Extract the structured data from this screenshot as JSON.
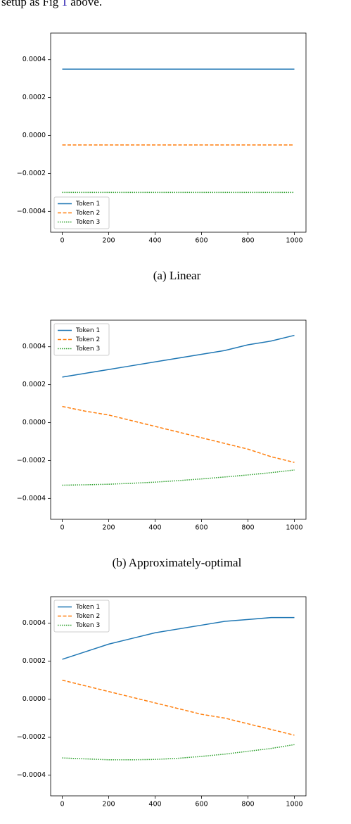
{
  "body_text": {
    "before": "setup as Fig",
    "ref": "1",
    "after": "above."
  },
  "chart_data": [
    {
      "type": "line",
      "caption": "(a) Linear",
      "legend": "lower left",
      "x": [
        0,
        100,
        200,
        300,
        400,
        500,
        600,
        700,
        800,
        900,
        1000
      ],
      "xlim": [
        -50,
        1050
      ],
      "xticks": [
        0,
        200,
        400,
        600,
        800,
        1000
      ],
      "ylim": [
        -0.00051,
        0.00054
      ],
      "yticks": [
        {
          "value": -0.0004,
          "label": "−0.0004"
        },
        {
          "value": -0.0002,
          "label": "−0.0002"
        },
        {
          "value": 0,
          "label": "0.0000"
        },
        0.0002,
        0.0004
      ],
      "series": [
        {
          "name": "Token 1",
          "color": "#1f77b4",
          "linestyle": "solid",
          "values": [
            0.00035,
            0.00035,
            0.00035,
            0.00035,
            0.00035,
            0.00035,
            0.00035,
            0.00035,
            0.00035,
            0.00035,
            0.00035
          ]
        },
        {
          "name": "Token 2",
          "color": "#ff7f0e",
          "linestyle": "dashed",
          "values": [
            -5e-05,
            -5e-05,
            -5e-05,
            -5e-05,
            -5e-05,
            -5e-05,
            -5e-05,
            -5e-05,
            -5e-05,
            -5e-05,
            -5e-05
          ]
        },
        {
          "name": "Token 3",
          "color": "#2ca02c",
          "linestyle": "dotted",
          "values": [
            -0.0003,
            -0.0003,
            -0.0003,
            -0.0003,
            -0.0003,
            -0.0003,
            -0.0003,
            -0.0003,
            -0.0003,
            -0.0003,
            -0.0003
          ]
        }
      ]
    },
    {
      "type": "line",
      "caption": "(b) Approximately-optimal",
      "legend": "upper left",
      "x": [
        0,
        100,
        200,
        300,
        400,
        500,
        600,
        700,
        800,
        900,
        1000
      ],
      "xlim": [
        -50,
        1050
      ],
      "xticks": [
        0,
        200,
        400,
        600,
        800,
        1000
      ],
      "ylim": [
        -0.00051,
        0.00054
      ],
      "yticks": [
        {
          "value": -0.0004,
          "label": "−0.0004"
        },
        {
          "value": -0.0002,
          "label": "−0.0002"
        },
        {
          "value": 0,
          "label": "0.0000"
        },
        0.0002,
        0.0004
      ],
      "series": [
        {
          "name": "Token 1",
          "color": "#1f77b4",
          "linestyle": "solid",
          "values": [
            0.00024,
            0.00026,
            0.00028,
            0.0003,
            0.00032,
            0.00034,
            0.00036,
            0.00038,
            0.00041,
            0.00043,
            0.00046
          ]
        },
        {
          "name": "Token 2",
          "color": "#ff7f0e",
          "linestyle": "dashed",
          "values": [
            8.5e-05,
            6e-05,
            4e-05,
            1e-05,
            -2e-05,
            -5e-05,
            -8e-05,
            -0.00011,
            -0.00014,
            -0.00018,
            -0.00021
          ]
        },
        {
          "name": "Token 3",
          "color": "#2ca02c",
          "linestyle": "dotted",
          "values": [
            -0.00033,
            -0.000328,
            -0.000325,
            -0.00032,
            -0.000314,
            -0.000306,
            -0.000297,
            -0.000287,
            -0.000276,
            -0.000264,
            -0.00025
          ]
        }
      ]
    },
    {
      "type": "line",
      "legend": "upper left",
      "x": [
        0,
        100,
        200,
        300,
        400,
        500,
        600,
        700,
        800,
        900,
        1000
      ],
      "xlim": [
        -50,
        1050
      ],
      "xticks": [
        0,
        200,
        400,
        600,
        800,
        1000
      ],
      "ylim": [
        -0.00051,
        0.00054
      ],
      "yticks": [
        {
          "value": -0.0004,
          "label": "−0.0004"
        },
        {
          "value": -0.0002,
          "label": "−0.0002"
        },
        {
          "value": 0,
          "label": "0.0000"
        },
        0.0002,
        0.0004
      ],
      "series": [
        {
          "name": "Token 1",
          "color": "#1f77b4",
          "linestyle": "solid",
          "values": [
            0.00021,
            0.00025,
            0.00029,
            0.00032,
            0.00035,
            0.00037,
            0.00039,
            0.00041,
            0.00042,
            0.00043,
            0.00043
          ]
        },
        {
          "name": "Token 2",
          "color": "#ff7f0e",
          "linestyle": "dashed",
          "values": [
            0.0001,
            7e-05,
            4e-05,
            1e-05,
            -2e-05,
            -5e-05,
            -8e-05,
            -0.0001,
            -0.00013,
            -0.00016,
            -0.00019
          ]
        },
        {
          "name": "Token 3",
          "color": "#2ca02c",
          "linestyle": "dotted",
          "values": [
            -0.00031,
            -0.000315,
            -0.00032,
            -0.00032,
            -0.000318,
            -0.000312,
            -0.000302,
            -0.00029,
            -0.000275,
            -0.00026,
            -0.00024
          ]
        }
      ]
    }
  ]
}
